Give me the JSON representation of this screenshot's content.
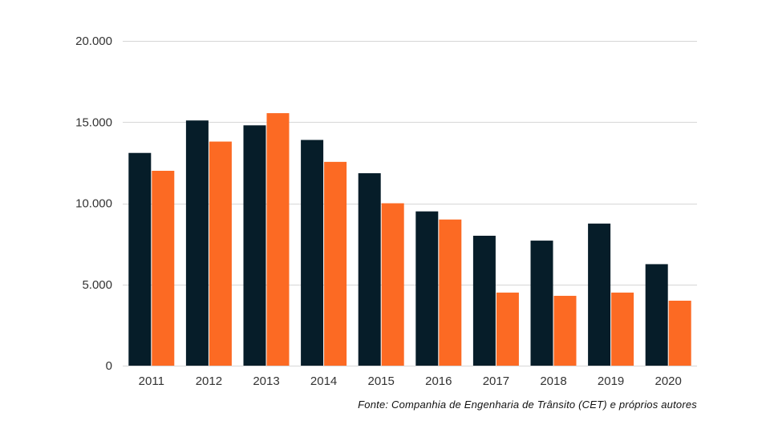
{
  "chart_data": {
    "type": "bar",
    "title": "",
    "xlabel": "",
    "ylabel": "",
    "categories": [
      "2011",
      "2012",
      "2013",
      "2014",
      "2015",
      "2016",
      "2017",
      "2018",
      "2019",
      "2020"
    ],
    "series": [
      {
        "values": [
          13100,
          15100,
          14800,
          13900,
          11850,
          9500,
          8000,
          7700,
          8750,
          6250
        ]
      },
      {
        "values": [
          12000,
          13800,
          15550,
          12550,
          10000,
          9000,
          4500,
          4300,
          4500,
          4000
        ]
      }
    ],
    "series_colors": [
      "#061d29",
      "#fc6a23"
    ],
    "ylim": [
      0,
      20000
    ],
    "y_ticks": [
      0,
      5000,
      10000,
      15000,
      20000
    ],
    "y_tick_labels": [
      "0",
      "5.000",
      "10.000",
      "15.000",
      "20.000"
    ],
    "grid": true,
    "legend": "none"
  },
  "source_note": "Fonte: Companhia de Engenharia de Trânsito (CET) e próprios autores"
}
